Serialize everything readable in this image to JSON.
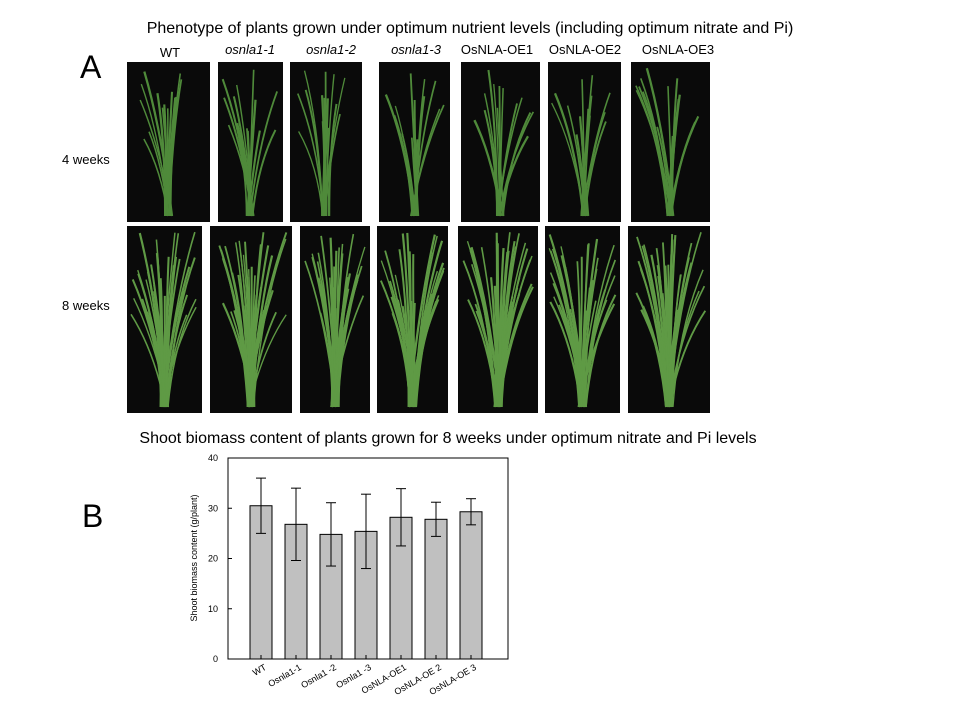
{
  "panel_a": {
    "title": "Phenotype of plants grown under optimum nutrient levels (including optimum nitrate and Pi)",
    "label": "A",
    "columns": [
      "WT",
      "osnla1-1",
      "osnla1-2",
      "osnla1-3",
      "OsNLA-OE1",
      "OsNLA-OE2",
      "OsNLA-OE3"
    ],
    "rows": [
      "4 weeks",
      "8 weeks"
    ]
  },
  "chart_data": {
    "type": "bar",
    "panel_label": "B",
    "title": "Shoot biomass content of plants grown for 8 weeks under optimum nitrate and Pi levels",
    "ylabel": "Shoot biomass content (g/plant)",
    "categories": [
      "WT",
      "Osnla1-1",
      "Osnla1 -2",
      "Osnla1 -3",
      "OsNLA-OE1",
      "OsNLA-OE 2",
      "OsNLA-OE 3"
    ],
    "values": [
      30.5,
      26.8,
      24.8,
      25.4,
      28.2,
      27.8,
      29.3
    ],
    "errors": [
      5.5,
      7.2,
      6.3,
      7.4,
      5.7,
      3.4,
      2.6
    ],
    "color": "#c0c0c0",
    "ylim": [
      0,
      40
    ],
    "yticks": [
      0,
      10,
      20,
      30,
      40
    ]
  }
}
